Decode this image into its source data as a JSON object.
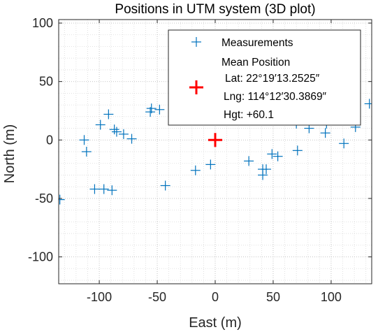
{
  "chart_data": {
    "type": "scatter",
    "title": "Positions in UTM system (3D plot)",
    "xlabel": "East (m)",
    "ylabel": "North (m)",
    "xlim": [
      -135,
      135
    ],
    "ylim": [
      -123,
      103
    ],
    "x_ticks": [
      -100,
      -50,
      0,
      50,
      100
    ],
    "x_tick_labels": [
      "-100",
      "-50",
      "0",
      "50",
      "100"
    ],
    "y_ticks": [
      -100,
      -50,
      0,
      50,
      100
    ],
    "y_tick_labels": [
      "-100",
      "-50",
      "0",
      "50",
      "100"
    ],
    "grid": true,
    "minor_grid": true,
    "legend_position": "top-right",
    "series": [
      {
        "name": "Measurements",
        "marker": "+",
        "color": "#0072BD",
        "points": [
          [
            -113,
            0
          ],
          [
            -111,
            -10
          ],
          [
            -104,
            -42
          ],
          [
            -96,
            -42
          ],
          [
            -89,
            -43
          ],
          [
            -99,
            13
          ],
          [
            -92,
            22
          ],
          [
            -87,
            9
          ],
          [
            -85,
            7
          ],
          [
            -79,
            5
          ],
          [
            -72,
            1
          ],
          [
            -56,
            24
          ],
          [
            -55,
            27
          ],
          [
            -48,
            26
          ],
          [
            -43,
            -39
          ],
          [
            -17,
            -26
          ],
          [
            -4,
            -21
          ],
          [
            29,
            -18
          ],
          [
            41,
            -25
          ],
          [
            41,
            -30
          ],
          [
            44,
            -25
          ],
          [
            49,
            -12
          ],
          [
            54,
            -14
          ],
          [
            71,
            -9
          ],
          [
            81,
            10
          ],
          [
            95,
            6
          ],
          [
            111,
            -3
          ],
          [
            121,
            11
          ],
          [
            133,
            31
          ],
          [
            -134,
            -51
          ],
          [
            70,
            14
          ],
          [
            96,
            14
          ]
        ]
      },
      {
        "name": "Mean Position",
        "marker": "+",
        "color": "#FF0000",
        "points": [
          [
            0,
            0
          ]
        ]
      }
    ],
    "legend": {
      "entries": [
        "Measurements",
        "Mean Position"
      ],
      "lat": "Lat: 22°19′13.2525″",
      "lng": "Lng: 114°12′30.3869″",
      "hgt": "Hgt: +60.1"
    }
  }
}
